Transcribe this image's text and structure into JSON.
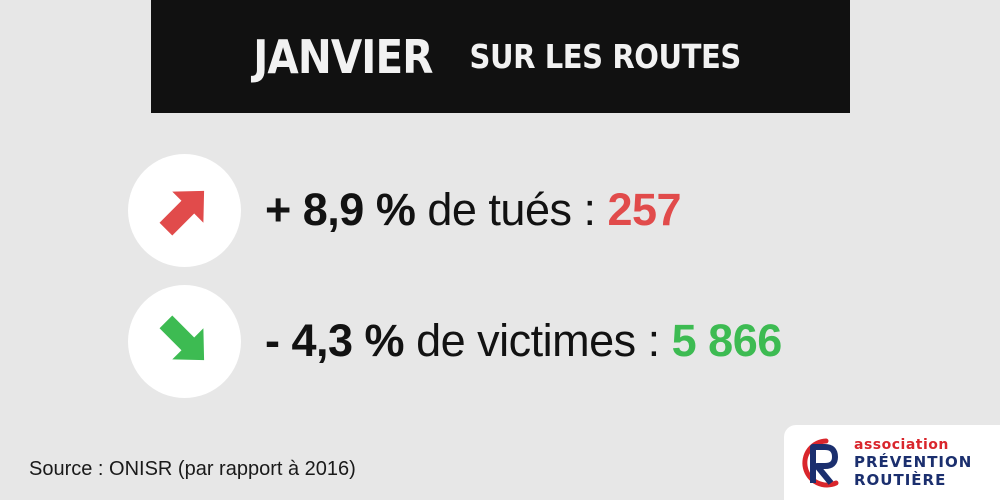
{
  "header": {
    "title_big": "JANVIER",
    "title_small": "SUR LES ROUTES"
  },
  "stats": [
    {
      "direction": "up",
      "icon": "arrow-up-right-icon",
      "arrow_color": "#e14b4b",
      "change": "+ 8,9 %",
      "label": " de tués : ",
      "value": "257",
      "value_color": "#e14b4b"
    },
    {
      "direction": "down",
      "icon": "arrow-down-right-icon",
      "arrow_color": "#3dbb52",
      "change": "- 4,3 %",
      "label": " de victimes : ",
      "value": "5 866",
      "value_color": "#3dbb52"
    }
  ],
  "source": "Source : ONISR (par rapport à 2016)",
  "logo": {
    "line1": "association",
    "line2": "PRÉVENTION",
    "line3": "ROUTIÈRE",
    "line1_color": "#d9262c",
    "text_color": "#1b2f6e",
    "mark_color_blue": "#1b2f6e",
    "mark_color_red": "#d9262c"
  }
}
